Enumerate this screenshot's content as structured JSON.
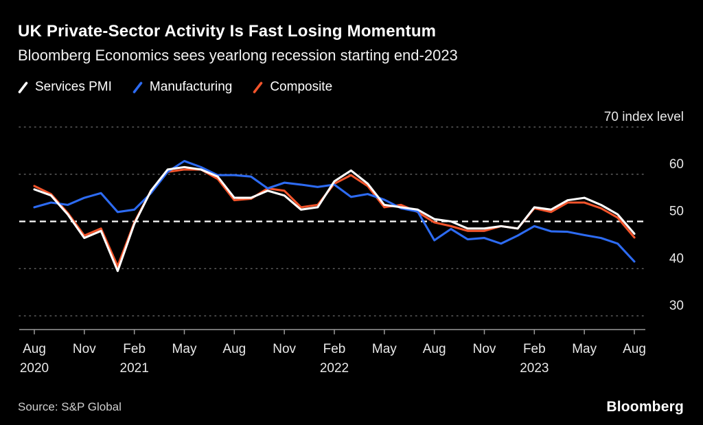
{
  "header": {
    "title": "UK Private-Sector Activity Is Fast Losing Momentum",
    "subtitle": "Bloomberg Economics sees yearlong recession starting end-2023"
  },
  "legend": [
    {
      "label": "Services PMI",
      "color": "#ffffff"
    },
    {
      "label": "Manufacturing",
      "color": "#2d6bf2"
    },
    {
      "label": "Composite",
      "color": "#f2542b"
    }
  ],
  "footer": {
    "source": "Source: S&P Global",
    "logo": "Bloomberg"
  },
  "chart_data": {
    "type": "line",
    "title": "UK Private-Sector Activity Is Fast Losing Momentum",
    "subtitle": "Bloomberg Economics sees yearlong recession starting end-2023",
    "ylabel_unit": "index level",
    "ytick_top_label": "70 index level",
    "ylim": [
      30,
      70
    ],
    "yticks": [
      30,
      40,
      50,
      60,
      70
    ],
    "threshold": 50,
    "grid": "dotted-horizontal",
    "legend_position": "top-left",
    "x": [
      "Aug 2020",
      "Sep 2020",
      "Oct 2020",
      "Nov 2020",
      "Dec 2020",
      "Jan 2021",
      "Feb 2021",
      "Mar 2021",
      "Apr 2021",
      "May 2021",
      "Jun 2021",
      "Jul 2021",
      "Aug 2021",
      "Sep 2021",
      "Oct 2021",
      "Nov 2021",
      "Dec 2021",
      "Jan 2022",
      "Feb 2022",
      "Mar 2022",
      "Apr 2022",
      "May 2022",
      "Jun 2022",
      "Jul 2022",
      "Aug 2022",
      "Sep 2022",
      "Oct 2022",
      "Nov 2022",
      "Dec 2022",
      "Jan 2023",
      "Feb 2023",
      "Mar 2023",
      "Apr 2023",
      "May 2023",
      "Jun 2023",
      "Jul 2023",
      "Aug 2023"
    ],
    "xticks": [
      {
        "i": 0,
        "label": "Aug",
        "year": "2020"
      },
      {
        "i": 3,
        "label": "Nov"
      },
      {
        "i": 6,
        "label": "Feb",
        "year": "2021"
      },
      {
        "i": 9,
        "label": "May"
      },
      {
        "i": 12,
        "label": "Aug"
      },
      {
        "i": 15,
        "label": "Nov"
      },
      {
        "i": 18,
        "label": "Feb",
        "year": "2022"
      },
      {
        "i": 21,
        "label": "May"
      },
      {
        "i": 24,
        "label": "Aug"
      },
      {
        "i": 27,
        "label": "Nov"
      },
      {
        "i": 30,
        "label": "Feb",
        "year": "2023"
      },
      {
        "i": 33,
        "label": "May"
      },
      {
        "i": 36,
        "label": "Aug"
      }
    ],
    "series": [
      {
        "name": "Services PMI",
        "color": "#ffffff",
        "values": [
          56.8,
          55.5,
          51.5,
          46.5,
          48.0,
          39.5,
          49.5,
          56.5,
          61.0,
          61.5,
          61.0,
          59.5,
          55.0,
          55.0,
          56.5,
          55.5,
          52.5,
          53.0,
          58.5,
          60.8,
          58.0,
          53.5,
          53.0,
          52.5,
          50.5,
          50.0,
          48.5,
          48.5,
          49.0,
          48.5,
          53.0,
          52.5,
          54.5,
          55.0,
          53.5,
          51.5,
          47.4
        ]
      },
      {
        "name": "Manufacturing",
        "color": "#2d6bf2",
        "values": [
          53.0,
          54.0,
          53.5,
          55.0,
          56.0,
          52.0,
          52.5,
          56.0,
          60.5,
          62.8,
          61.5,
          59.8,
          59.8,
          59.5,
          57.0,
          58.2,
          57.8,
          57.3,
          57.8,
          55.2,
          55.8,
          54.6,
          52.8,
          52.1,
          46.0,
          48.4,
          46.2,
          46.5,
          45.3,
          47.0,
          49.0,
          47.9,
          47.8,
          47.1,
          46.5,
          45.3,
          41.5
        ]
      },
      {
        "name": "Composite",
        "color": "#f2542b",
        "values": [
          57.5,
          55.8,
          51.8,
          47.0,
          48.5,
          40.5,
          49.8,
          56.5,
          60.5,
          61.0,
          61.0,
          59.0,
          54.5,
          54.8,
          57.0,
          56.5,
          53.0,
          53.5,
          58.0,
          59.8,
          57.5,
          53.0,
          53.5,
          52.0,
          49.8,
          49.0,
          48.0,
          48.0,
          49.0,
          48.5,
          52.8,
          52.0,
          54.0,
          54.0,
          52.8,
          50.8,
          46.6
        ]
      }
    ]
  }
}
